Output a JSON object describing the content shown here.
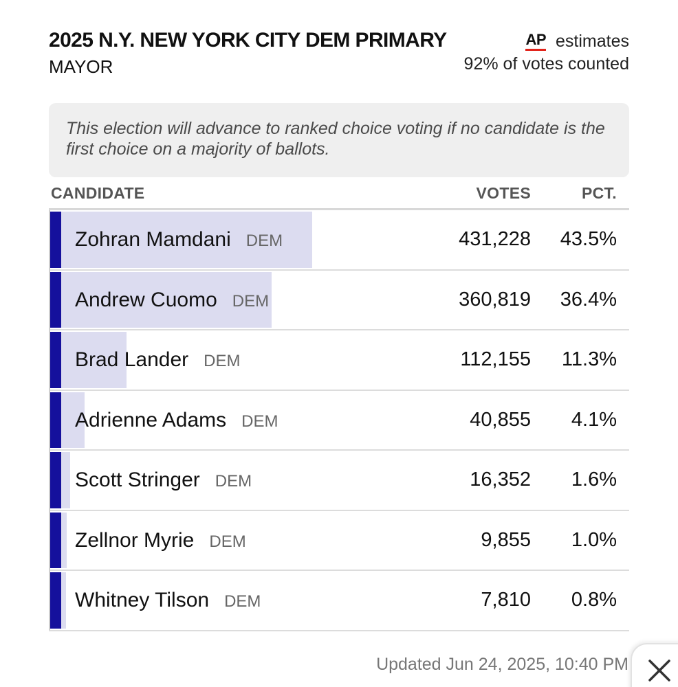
{
  "header": {
    "title": "2025 N.Y. NEW YORK CITY DEM PRIMARY",
    "subtitle": "MAYOR",
    "ap_logo": "AP",
    "ap_label": "estimates",
    "counted": "92% of votes counted"
  },
  "notice": "This election will advance to ranked choice voting if no candidate is the first choice on a majority of ballots.",
  "columns": {
    "candidate": "CANDIDATE",
    "votes": "VOTES",
    "pct": "PCT."
  },
  "party_color": "#15109c",
  "share_color": "#dcdcf0",
  "candidates": [
    {
      "name": "Zohran Mamdani",
      "party": "DEM",
      "votes": "431,228",
      "pct": "43.5%",
      "share": 43.5
    },
    {
      "name": "Andrew Cuomo",
      "party": "DEM",
      "votes": "360,819",
      "pct": "36.4%",
      "share": 36.4
    },
    {
      "name": "Brad Lander",
      "party": "DEM",
      "votes": "112,155",
      "pct": "11.3%",
      "share": 11.3
    },
    {
      "name": "Adrienne Adams",
      "party": "DEM",
      "votes": "40,855",
      "pct": "4.1%",
      "share": 4.1
    },
    {
      "name": "Scott Stringer",
      "party": "DEM",
      "votes": "16,352",
      "pct": "1.6%",
      "share": 1.6
    },
    {
      "name": "Zellnor Myrie",
      "party": "DEM",
      "votes": "9,855",
      "pct": "1.0%",
      "share": 1.0
    },
    {
      "name": "Whitney Tilson",
      "party": "DEM",
      "votes": "7,810",
      "pct": "0.8%",
      "share": 0.8
    }
  ],
  "updated": "Updated Jun 24, 2025, 10:40 PM",
  "close_icon": "close-icon"
}
